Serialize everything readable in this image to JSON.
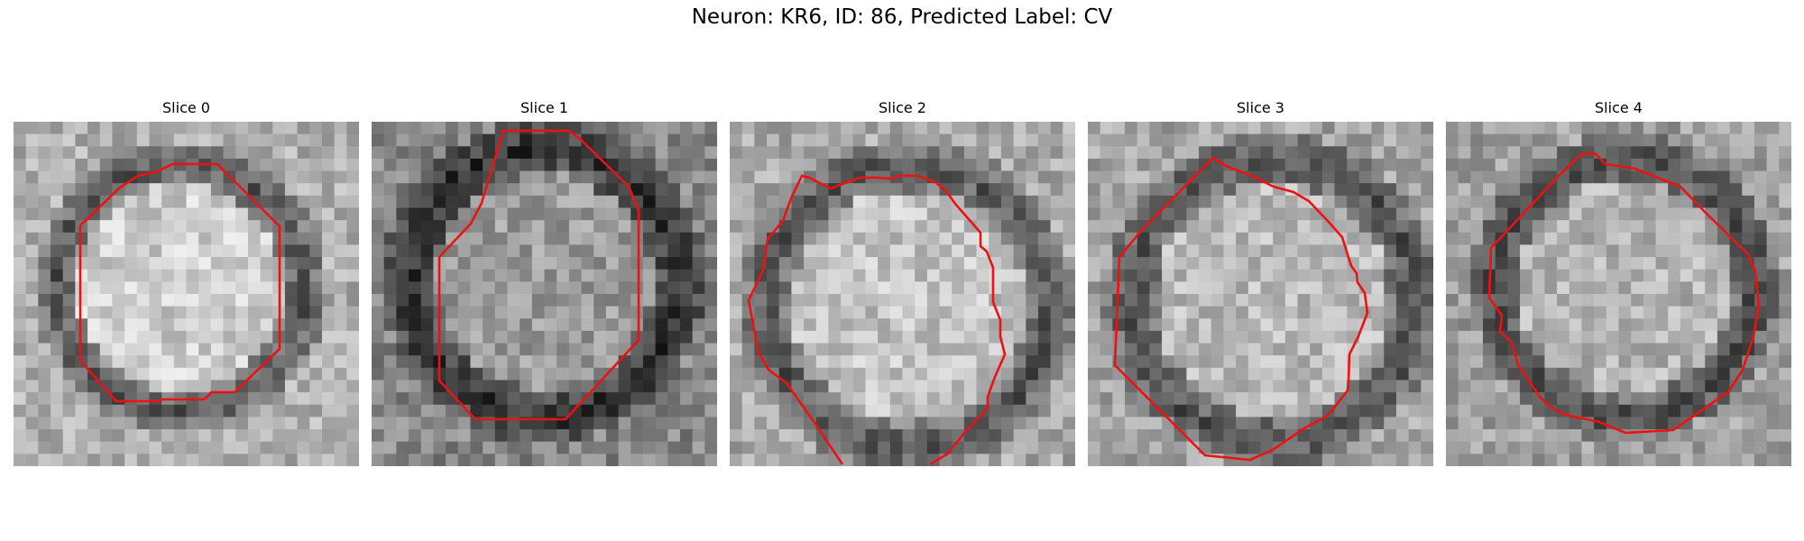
{
  "figure": {
    "title": "Neuron: KR6, ID: 86, Predicted Label: CV"
  },
  "panels": [
    {
      "label": "Slice 0"
    },
    {
      "label": "Slice 1"
    },
    {
      "label": "Slice 2"
    },
    {
      "label": "Slice 3"
    },
    {
      "label": "Slice 4"
    }
  ],
  "contour_color": "#ee1111",
  "colormap": "grayscale"
}
